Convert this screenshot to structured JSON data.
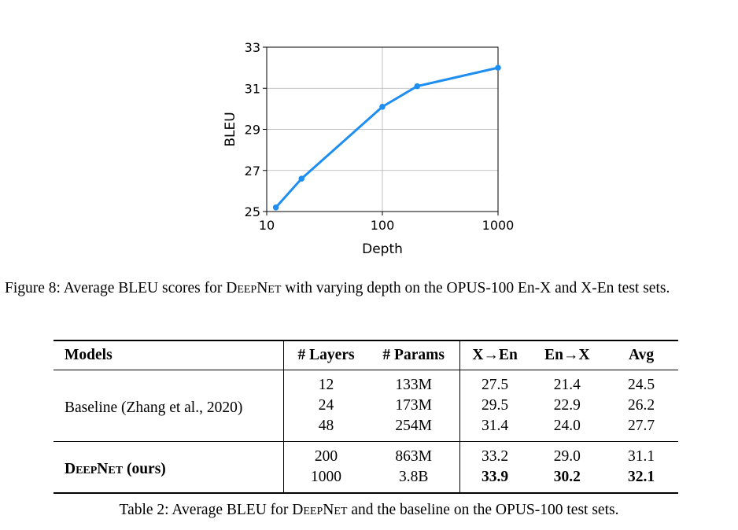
{
  "figure": {
    "caption_prefix": "Figure 8: Average BLEU scores for ",
    "caption_model": "DeepNet",
    "caption_suffix": " with varying depth on the OPUS-100 En-X and X-En test sets."
  },
  "chart_data": {
    "type": "line",
    "xscale": "log",
    "xlabel": "Depth",
    "ylabel": "BLEU",
    "xlim": [
      10,
      1000
    ],
    "ylim": [
      25,
      33
    ],
    "x_ticks": [
      10,
      100,
      1000
    ],
    "x_tick_labels": [
      "10",
      "100",
      "1000"
    ],
    "y_ticks": [
      25,
      27,
      29,
      31,
      33
    ],
    "y_tick_labels": [
      "25",
      "27",
      "29",
      "31",
      "33"
    ],
    "grid": true,
    "line_color": "#1f8ef1",
    "series": [
      {
        "x": [
          12,
          20,
          100,
          200,
          1000
        ],
        "y": [
          25.2,
          26.6,
          30.1,
          31.1,
          32.0
        ]
      }
    ]
  },
  "table": {
    "headers": {
      "models": "Models",
      "layers": "# Layers",
      "params": "# Params",
      "x2en": "X→En",
      "en2x": "En→X",
      "avg": "Avg"
    },
    "baseline": {
      "model": "Baseline (Zhang et al., 2020)",
      "rows": [
        {
          "layers": "12",
          "params": "133M",
          "x2en": "27.5",
          "en2x": "21.4",
          "avg": "24.5"
        },
        {
          "layers": "24",
          "params": "173M",
          "x2en": "29.5",
          "en2x": "22.9",
          "avg": "26.2"
        },
        {
          "layers": "48",
          "params": "254M",
          "x2en": "31.4",
          "en2x": "24.0",
          "avg": "27.7"
        }
      ]
    },
    "deepnet": {
      "model_name": "DeepNet",
      "model_suffix": " (ours)",
      "rows": [
        {
          "layers": "200",
          "params": "863M",
          "x2en": "33.2",
          "en2x": "29.0",
          "avg": "31.1"
        },
        {
          "layers": "1000",
          "params": "3.8B",
          "x2en": "33.9",
          "en2x": "30.2",
          "avg": "32.1"
        }
      ]
    },
    "caption_prefix": "Table 2: Average BLEU for ",
    "caption_model": "DeepNet",
    "caption_suffix": " and the baseline on the OPUS-100 test sets."
  }
}
